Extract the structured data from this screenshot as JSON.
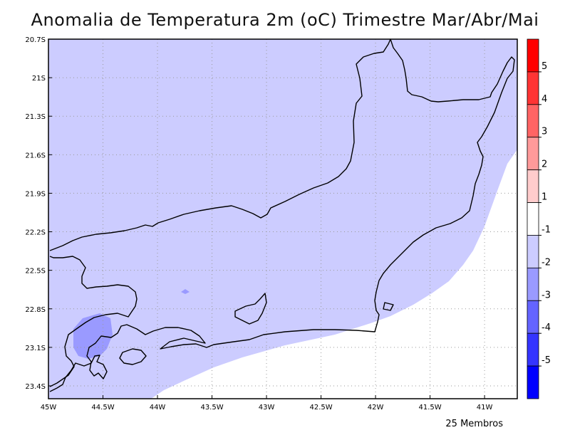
{
  "title": "Anomalia de Temperatura 2m (oC) Trimestre Mar/Abr/Mai",
  "footer_note": "25 Membros",
  "map": {
    "lon_range": [
      -45.0,
      -40.7
    ],
    "lat_range": [
      -23.5,
      -20.7
    ],
    "x_ticks": [
      "45W",
      "44.5W",
      "44W",
      "43.5W",
      "43W",
      "42.5W",
      "42W",
      "41.5W",
      "41W"
    ],
    "x_tick_values": [
      -45.0,
      -44.5,
      -44.0,
      -43.5,
      -43.0,
      -42.5,
      -42.0,
      -41.5,
      -41.0
    ],
    "y_ticks": [
      "20.7S",
      "21S",
      "21.3S",
      "21.6S",
      "21.9S",
      "22.2S",
      "22.5S",
      "22.8S",
      "23.1S",
      "23.4S"
    ],
    "y_tick_values": [
      -20.7,
      -21.0,
      -21.3,
      -21.6,
      -21.9,
      -22.2,
      -22.5,
      -22.8,
      -23.1,
      -23.4
    ],
    "grid": "dotted"
  },
  "colorbar": {
    "labels": [
      "5",
      "4",
      "3",
      "2",
      "1",
      "-1",
      "-2",
      "-3",
      "-4",
      "-5"
    ],
    "colors": [
      "#ff0000",
      "#ff3434",
      "#ff6464",
      "#ff9a9a",
      "#ffcccc",
      "#ffffff",
      "#ccccff",
      "#9a9aff",
      "#6464ff",
      "#3434ff",
      "#0000ff"
    ]
  },
  "colors": {
    "anomaly_-1_-2": "#ccccff",
    "anomaly_-2_-3": "#9a9aff",
    "no_anomaly": "#ffffff",
    "outline": "#000000"
  }
}
